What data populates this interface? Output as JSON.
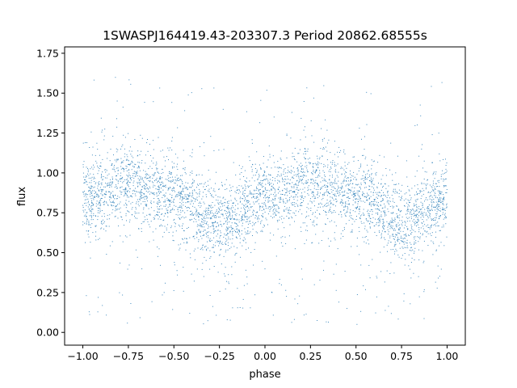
{
  "chart_data": {
    "type": "scatter",
    "title": "1SWASPJ164419.43-203307.3 Period 20862.68555s",
    "xlabel": "phase",
    "ylabel": "flux",
    "xlim": [
      -1.1,
      1.1
    ],
    "ylim": [
      -0.08,
      1.79
    ],
    "xticks": [
      -1.0,
      -0.75,
      -0.5,
      -0.25,
      0.0,
      0.25,
      0.5,
      0.75,
      1.0
    ],
    "xtick_labels": [
      "−1.00",
      "−0.75",
      "−0.50",
      "−0.25",
      "0.00",
      "0.25",
      "0.50",
      "0.75",
      "1.00"
    ],
    "yticks": [
      0.0,
      0.25,
      0.5,
      0.75,
      1.0,
      1.25,
      1.5,
      1.75
    ],
    "ytick_labels": [
      "0.00",
      "0.25",
      "0.50",
      "0.75",
      "1.00",
      "1.25",
      "1.50",
      "1.75"
    ],
    "grid": false,
    "legend": "none",
    "marker_color": "#1f77b4",
    "series": [
      {
        "phase_range": [
          -1.0,
          1.0
        ],
        "trend_phase": [
          -1.0,
          -0.75,
          -0.5,
          -0.25,
          0.0,
          0.25,
          0.5,
          0.75,
          1.0
        ],
        "trend_flux": [
          0.84,
          0.93,
          0.86,
          0.69,
          0.84,
          0.93,
          0.86,
          0.69,
          0.84
        ],
        "core_spread": 0.11,
        "outlier_flux_range": [
          0.05,
          1.6
        ]
      }
    ]
  }
}
